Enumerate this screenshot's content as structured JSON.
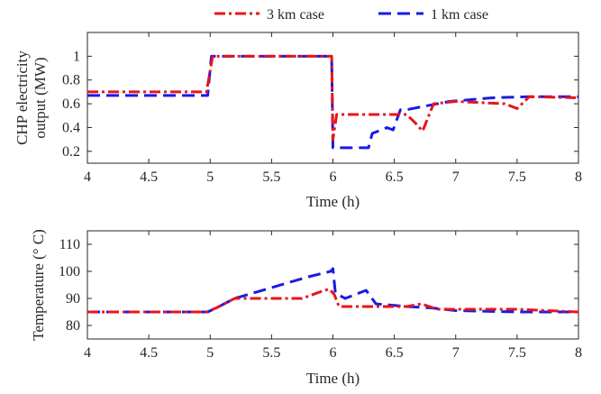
{
  "legend": {
    "placement": "top-center",
    "entries": [
      {
        "label": "3 km case",
        "color": "#e8141c",
        "dash": "dash-dot"
      },
      {
        "label": "1 km case",
        "color": "#1a1ae6",
        "dash": "dashed"
      }
    ]
  },
  "colors": {
    "series_3km": "#e8141c",
    "series_1km": "#1a1ae6"
  },
  "chart_data": [
    {
      "type": "line",
      "title": "",
      "xlabel": "Time (h)",
      "ylabel_lines": [
        "CHP electricity",
        "output (MW)"
      ],
      "xlim": [
        4,
        8
      ],
      "ylim": [
        0.1,
        1.2
      ],
      "xticks": [
        4,
        4.5,
        5,
        5.5,
        6,
        6.5,
        7,
        7.5,
        8
      ],
      "xtick_labels": [
        "4",
        "4.5",
        "5",
        "5.5",
        "6",
        "6.5",
        "7",
        "7.5",
        "8"
      ],
      "yticks": [
        0.2,
        0.4,
        0.6,
        0.8,
        1
      ],
      "ytick_labels": [
        "0.2",
        "0.4",
        "0.6",
        "0.8",
        "1"
      ],
      "grid": false,
      "series": [
        {
          "name": "3 km case",
          "x": [
            4,
            4.97,
            5.02,
            5.99,
            6.0,
            6.03,
            6.6,
            6.67,
            6.73,
            6.82,
            7.0,
            7.4,
            7.5,
            7.6,
            8.0
          ],
          "y": [
            0.7,
            0.7,
            1.0,
            1.0,
            0.3,
            0.51,
            0.51,
            0.44,
            0.37,
            0.6,
            0.62,
            0.6,
            0.56,
            0.66,
            0.65
          ]
        },
        {
          "name": "1 km case",
          "x": [
            4,
            4.98,
            5.01,
            5.99,
            6.0,
            6.02,
            6.29,
            6.32,
            6.44,
            6.49,
            6.55,
            6.6,
            6.7,
            6.95,
            7.3,
            7.6,
            8.0
          ],
          "y": [
            0.67,
            0.67,
            1.0,
            1.0,
            0.23,
            0.23,
            0.23,
            0.35,
            0.4,
            0.38,
            0.55,
            0.55,
            0.57,
            0.62,
            0.65,
            0.66,
            0.66
          ]
        }
      ]
    },
    {
      "type": "line",
      "title": "",
      "xlabel": "Time (h)",
      "ylabel_lines": [
        "Temperature (° C)"
      ],
      "xlim": [
        4,
        8
      ],
      "ylim": [
        75,
        115
      ],
      "xticks": [
        4,
        4.5,
        5,
        5.5,
        6,
        6.5,
        7,
        7.5,
        8
      ],
      "xtick_labels": [
        "4",
        "4.5",
        "5",
        "5.5",
        "6",
        "6.5",
        "7",
        "7.5",
        "8"
      ],
      "yticks": [
        80,
        90,
        100,
        110
      ],
      "ytick_labels": [
        "80",
        "90",
        "100",
        "110"
      ],
      "grid": false,
      "series": [
        {
          "name": "3 km case",
          "x": [
            4,
            4.97,
            5.05,
            5.2,
            5.75,
            5.9,
            5.97,
            6.01,
            6.05,
            6.6,
            6.72,
            6.85,
            7.3,
            7.5,
            8.0
          ],
          "y": [
            85,
            85,
            86.5,
            90,
            90,
            92.5,
            93.5,
            91.5,
            87,
            87,
            88,
            86,
            86,
            86,
            85
          ]
        },
        {
          "name": "1 km case",
          "x": [
            4,
            4.98,
            5.05,
            5.2,
            5.5,
            5.8,
            5.98,
            6.0,
            6.02,
            6.1,
            6.27,
            6.35,
            6.6,
            6.8,
            7.0,
            7.5,
            8.0
          ],
          "y": [
            85,
            85,
            86.5,
            90,
            94,
            98,
            100,
            101,
            92,
            90,
            93,
            88,
            87,
            86.5,
            85.5,
            85,
            85
          ]
        }
      ]
    }
  ]
}
